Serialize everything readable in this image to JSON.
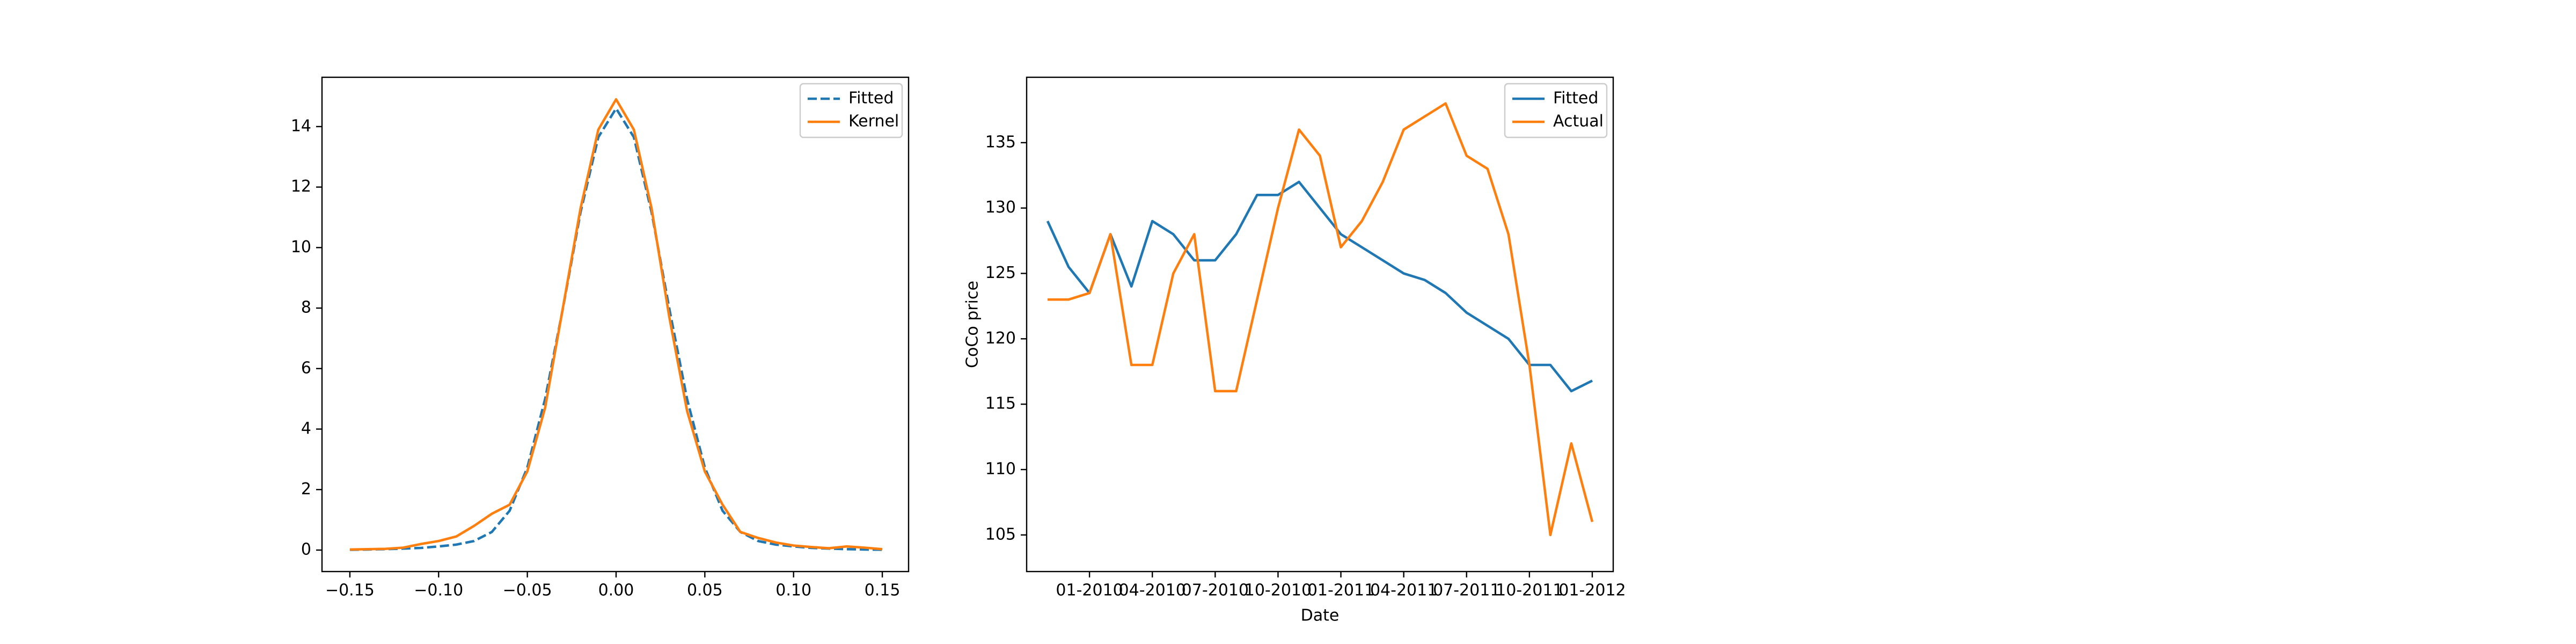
{
  "chart_data": [
    {
      "type": "line",
      "x": [
        -0.15,
        -0.14,
        -0.13,
        -0.12,
        -0.11,
        -0.1,
        -0.09,
        -0.08,
        -0.07,
        -0.06,
        -0.05,
        -0.04,
        -0.03,
        -0.02,
        -0.01,
        0,
        0.01,
        0.02,
        0.03,
        0.04,
        0.05,
        0.06,
        0.07,
        0.08,
        0.09,
        0.1,
        0.11,
        0.12,
        0.13,
        0.14,
        0.15
      ],
      "series": [
        {
          "name": "Fitted",
          "color": "#1f77b4",
          "linestyle": "dashed",
          "values": [
            0.01,
            0.02,
            0.03,
            0.05,
            0.07,
            0.12,
            0.18,
            0.3,
            0.6,
            1.3,
            2.73,
            4.99,
            7.98,
            11.17,
            13.65,
            14.6,
            13.65,
            11.17,
            7.98,
            4.99,
            2.73,
            1.3,
            0.6,
            0.3,
            0.18,
            0.12,
            0.07,
            0.05,
            0.03,
            0.02,
            0.01
          ]
        },
        {
          "name": "Kernel",
          "color": "#ff7f0e",
          "linestyle": "solid",
          "values": [
            0.02,
            0.03,
            0.04,
            0.08,
            0.2,
            0.3,
            0.45,
            0.8,
            1.2,
            1.5,
            2.6,
            4.7,
            8.0,
            11.3,
            13.9,
            14.9,
            13.9,
            11.3,
            7.7,
            4.6,
            2.6,
            1.5,
            0.6,
            0.4,
            0.25,
            0.15,
            0.1,
            0.06,
            0.12,
            0.08,
            0.03
          ]
        }
      ],
      "xlim": [
        -0.1657,
        0.1648
      ],
      "xticks": [
        {
          "value": -0.15,
          "label": "−0.15"
        },
        {
          "value": -0.1,
          "label": "−0.10"
        },
        {
          "value": -0.05,
          "label": "−0.05"
        },
        {
          "value": 0,
          "label": "0.00"
        },
        {
          "value": 0.05,
          "label": "0.05"
        },
        {
          "value": 0.1,
          "label": "0.10"
        },
        {
          "value": 0.15,
          "label": "0.15"
        }
      ],
      "ylim": [
        -0.71,
        15.63
      ],
      "yticks": [
        0,
        2,
        4,
        6,
        8,
        10,
        12,
        14
      ],
      "legend": "upper right"
    },
    {
      "type": "line",
      "x_label": "Date",
      "y_label": "CoCo price",
      "x": [
        "2009-11",
        "2009-12",
        "2010-01",
        "2010-02",
        "2010-03",
        "2010-04",
        "2010-05",
        "2010-06",
        "2010-07",
        "2010-08",
        "2010-09",
        "2010-10",
        "2010-11",
        "2010-12",
        "2011-01",
        "2011-02",
        "2011-03",
        "2011-04",
        "2011-05",
        "2011-06",
        "2011-07",
        "2011-08",
        "2011-09",
        "2011-10",
        "2011-11",
        "2011-12",
        "2012-01"
      ],
      "series": [
        {
          "name": "Fitted",
          "color": "#1f77b4",
          "linestyle": "solid",
          "values": [
            129,
            125.5,
            123.5,
            128,
            124,
            129,
            128,
            126,
            126,
            128,
            131,
            131,
            132,
            130,
            128,
            127,
            126,
            125,
            124.5,
            123.5,
            122,
            121,
            120,
            118,
            118,
            116,
            116.8
          ]
        },
        {
          "name": "Actual",
          "color": "#ff7f0e",
          "linestyle": "solid",
          "values": [
            123,
            123,
            123.5,
            128,
            118,
            118,
            125,
            128,
            116,
            116,
            123,
            130,
            136,
            134,
            127,
            129,
            132,
            136,
            137,
            138,
            134,
            133,
            128,
            118,
            105,
            112,
            106
          ]
        }
      ],
      "xlim": [
        "2009-10",
        "2012-02"
      ],
      "xticks": [
        {
          "value": "2010-01",
          "label": "01-2010"
        },
        {
          "value": "2010-04",
          "label": "04-2010"
        },
        {
          "value": "2010-07",
          "label": "07-2010"
        },
        {
          "value": "2010-10",
          "label": "10-2010"
        },
        {
          "value": "2011-01",
          "label": "01-2011"
        },
        {
          "value": "2011-04",
          "label": "04-2011"
        },
        {
          "value": "2011-07",
          "label": "07-2011"
        },
        {
          "value": "2011-10",
          "label": "10-2011"
        },
        {
          "value": "2012-01",
          "label": "01-2012"
        }
      ],
      "ylim": [
        102.2,
        140.0
      ],
      "yticks": [
        105,
        110,
        115,
        120,
        125,
        130,
        135
      ],
      "legend": "upper right"
    }
  ]
}
